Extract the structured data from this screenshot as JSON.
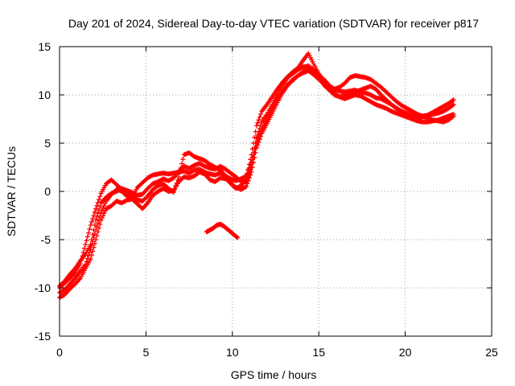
{
  "chart_data": {
    "type": "scatter",
    "title": "Day 201 of 2024, Sidereal Day-to-day VTEC variation (SDTVAR) for receiver p817",
    "xlabel": "GPS time / hours",
    "ylabel": "SDTVAR / TECUs",
    "xlim": [
      0,
      25
    ],
    "ylim": [
      -15,
      15
    ],
    "xticks": [
      0,
      5,
      10,
      15,
      20,
      25
    ],
    "yticks": [
      -15,
      -10,
      -5,
      0,
      5,
      10,
      15
    ],
    "xtick_labels": [
      "0",
      "5",
      "10",
      "15",
      "20",
      "25"
    ],
    "ytick_labels": [
      "-15",
      "-10",
      "-5",
      "0",
      "5",
      "10",
      "15"
    ],
    "grid": true,
    "marker": "+",
    "color": "#ff0000",
    "series": [
      {
        "name": "track_a",
        "x": [
          0.0,
          0.3,
          0.6,
          0.9,
          1.2,
          1.5,
          1.8,
          2.1,
          2.4,
          2.7,
          3.0,
          3.3,
          3.6,
          3.9,
          4.2,
          4.5,
          4.8,
          5.1,
          5.4,
          5.7,
          6.0,
          6.3,
          6.6,
          6.9,
          7.2,
          7.5,
          7.8,
          8.1,
          8.4,
          8.7,
          9.0,
          9.3,
          9.6,
          9.9,
          10.2,
          10.5,
          10.8,
          11.1,
          11.4,
          11.7,
          12.0,
          12.3,
          12.6,
          12.9,
          13.2,
          13.5,
          13.8,
          14.1,
          14.4,
          14.7,
          15.0,
          15.3,
          15.6,
          15.9,
          16.2,
          16.5,
          16.8,
          17.1,
          17.4,
          17.7,
          18.0,
          18.3,
          18.6,
          18.9,
          19.2,
          19.5,
          19.8,
          20.1,
          20.4,
          20.7,
          21.0,
          21.3,
          21.6,
          21.9,
          22.2,
          22.5,
          22.8
        ],
        "y": [
          -10.5,
          -10.2,
          -9.6,
          -9.0,
          -8.3,
          -7.6,
          -6.0,
          -4.0,
          -2.2,
          -1.0,
          -0.3,
          0.2,
          0.0,
          -0.5,
          -0.6,
          0.4,
          0.9,
          1.4,
          1.7,
          1.8,
          1.9,
          1.8,
          1.9,
          2.0,
          2.1,
          1.9,
          2.2,
          2.3,
          2.0,
          1.8,
          1.7,
          1.9,
          1.6,
          1.3,
          1.1,
          1.3,
          1.6,
          3.0,
          5.5,
          7.2,
          8.0,
          9.0,
          10.1,
          11.0,
          11.8,
          12.2,
          12.6,
          12.9,
          13.0,
          12.6,
          12.0,
          11.6,
          11.0,
          10.6,
          10.4,
          10.3,
          10.4,
          10.5,
          10.3,
          10.2,
          10.0,
          9.7,
          9.6,
          9.3,
          9.0,
          8.6,
          8.3,
          8.1,
          8.0,
          7.9,
          7.8,
          7.9,
          8.0,
          8.1,
          8.3,
          8.6,
          9.0
        ]
      },
      {
        "name": "track_b",
        "x": [
          0.0,
          0.3,
          0.6,
          0.9,
          1.2,
          1.5,
          1.8,
          2.1,
          2.4,
          2.7,
          3.0,
          3.3,
          3.6,
          3.9,
          4.2,
          4.5,
          4.8,
          5.1,
          5.4,
          5.7,
          6.0,
          6.3,
          6.6,
          6.9,
          7.2,
          7.5,
          7.8,
          8.1,
          8.4,
          8.7,
          9.0,
          9.3,
          9.6,
          9.9,
          10.2,
          10.5,
          10.8,
          11.1,
          11.4,
          11.7,
          12.0,
          12.3,
          12.6,
          12.9,
          13.2,
          13.5,
          13.8,
          14.1,
          14.4,
          14.7,
          15.0,
          15.3,
          15.6,
          15.9,
          16.2,
          16.5,
          16.8,
          17.1,
          17.4,
          17.7,
          18.0,
          18.3,
          18.6,
          18.9,
          19.2,
          19.5,
          19.8,
          20.1,
          20.4,
          20.7,
          21.0,
          21.3,
          21.6,
          21.9,
          22.2,
          22.5,
          22.8
        ],
        "y": [
          -10.0,
          -9.5,
          -9.0,
          -8.4,
          -7.5,
          -5.5,
          -3.5,
          -1.8,
          -0.2,
          0.8,
          1.2,
          0.7,
          0.2,
          0.0,
          -0.4,
          -0.9,
          -1.0,
          -0.5,
          0.2,
          0.6,
          0.8,
          0.3,
          -0.1,
          1.5,
          3.8,
          4.0,
          3.6,
          3.4,
          3.2,
          2.8,
          2.5,
          2.2,
          1.6,
          0.8,
          0.3,
          0.6,
          1.3,
          3.8,
          6.8,
          8.3,
          9.0,
          9.8,
          10.6,
          11.3,
          11.9,
          12.4,
          12.8,
          13.6,
          14.3,
          13.2,
          12.2,
          11.4,
          10.8,
          10.2,
          9.8,
          9.6,
          9.8,
          10.0,
          9.9,
          9.6,
          9.3,
          9.0,
          8.8,
          8.6,
          8.3,
          8.1,
          7.9,
          7.7,
          7.5,
          7.3,
          7.2,
          7.2,
          7.3,
          7.4,
          7.6,
          7.8,
          8.0
        ]
      },
      {
        "name": "track_c",
        "x": [
          0.0,
          0.3,
          0.6,
          0.9,
          1.2,
          1.5,
          1.8,
          2.1,
          2.4,
          2.7,
          3.0,
          3.3,
          3.6,
          3.9,
          4.2,
          4.5,
          4.8,
          5.1,
          5.4,
          5.7,
          6.0,
          6.3,
          6.6,
          6.9,
          7.2,
          7.5,
          7.8,
          8.1,
          8.4,
          8.7,
          9.0,
          9.3,
          9.6,
          9.9,
          10.2,
          10.5,
          10.8,
          11.1,
          11.4,
          11.7,
          12.0,
          12.3,
          12.6,
          12.9,
          13.2,
          13.5,
          13.8,
          14.1,
          14.4,
          14.7,
          15.0,
          15.3,
          15.6,
          15.9,
          16.2,
          16.5,
          16.8,
          17.1,
          17.4,
          17.7,
          18.0,
          18.3,
          18.6,
          18.9,
          19.2,
          19.5,
          19.8,
          20.1,
          20.4,
          20.7,
          21.0,
          21.3,
          21.6,
          21.9,
          22.2,
          22.5,
          22.8
        ],
        "y": [
          -11.0,
          -10.7,
          -10.1,
          -9.6,
          -9.0,
          -8.0,
          -7.0,
          -5.0,
          -3.0,
          -1.8,
          -1.5,
          -1.0,
          -1.2,
          -0.9,
          -0.8,
          -1.3,
          -1.8,
          -1.2,
          -0.4,
          0.0,
          0.3,
          0.0,
          0.1,
          1.0,
          1.5,
          1.4,
          1.6,
          2.0,
          1.8,
          1.2,
          1.0,
          1.4,
          1.3,
          0.9,
          0.4,
          0.2,
          0.5,
          2.0,
          4.5,
          6.0,
          7.0,
          8.1,
          9.2,
          10.2,
          11.0,
          11.5,
          12.0,
          12.3,
          12.5,
          12.1,
          11.6,
          11.2,
          10.8,
          10.6,
          10.8,
          11.2,
          11.8,
          12.0,
          11.9,
          11.8,
          11.6,
          11.2,
          10.8,
          10.3,
          9.8,
          9.3,
          8.9,
          8.6,
          8.3,
          8.0,
          7.8,
          7.6,
          7.4,
          7.3,
          7.2,
          7.4,
          7.8
        ]
      },
      {
        "name": "track_d",
        "x": [
          0.0,
          0.3,
          0.6,
          0.9,
          1.2,
          1.5,
          1.8,
          2.1,
          2.4,
          2.7,
          3.0,
          3.3,
          3.6,
          3.9,
          4.2,
          4.5,
          4.8,
          5.1,
          5.4,
          5.7,
          6.0,
          6.3,
          6.6,
          6.9,
          7.2,
          7.5,
          7.8,
          8.1,
          8.4,
          8.7,
          9.0,
          9.3,
          9.6,
          9.9,
          10.2,
          10.5,
          10.8,
          11.1,
          11.4,
          11.7,
          12.0,
          12.3,
          12.6,
          12.9,
          13.2,
          13.5,
          13.8,
          14.1,
          14.4,
          14.7,
          15.0,
          15.3,
          15.6,
          15.9,
          16.2,
          16.5,
          16.8,
          17.1,
          17.4,
          17.7,
          18.0,
          18.3,
          18.6,
          18.9,
          19.2,
          19.5,
          19.8,
          20.1,
          20.4,
          20.7,
          21.0,
          21.3,
          21.6,
          21.9,
          22.2,
          22.5,
          22.8
        ],
        "y": [
          -9.8,
          -9.3,
          -8.6,
          -8.0,
          -7.2,
          -6.5,
          -5.5,
          -3.0,
          -1.2,
          -0.6,
          -0.2,
          0.0,
          0.3,
          0.1,
          -0.1,
          -0.4,
          -0.3,
          0.3,
          0.8,
          1.0,
          1.3,
          1.1,
          1.4,
          2.1,
          2.6,
          2.4,
          2.7,
          2.9,
          2.6,
          2.4,
          2.3,
          2.6,
          2.3,
          1.9,
          1.5,
          1.0,
          1.0,
          2.5,
          5.0,
          6.5,
          7.5,
          8.6,
          9.6,
          10.4,
          11.1,
          11.6,
          12.0,
          12.4,
          12.8,
          12.4,
          11.8,
          11.0,
          10.5,
          10.0,
          9.8,
          9.9,
          10.1,
          10.3,
          10.5,
          10.7,
          10.9,
          10.6,
          10.0,
          9.5,
          9.0,
          8.6,
          8.2,
          7.9,
          7.7,
          7.6,
          7.7,
          7.9,
          8.2,
          8.5,
          8.8,
          9.1,
          9.5
        ]
      },
      {
        "name": "track_e",
        "x": [
          8.5,
          8.7,
          8.9,
          9.1,
          9.3,
          9.5,
          9.7,
          9.9,
          10.1,
          10.3
        ],
        "y": [
          -4.2,
          -4.0,
          -3.8,
          -3.5,
          -3.4,
          -3.6,
          -3.9,
          -4.2,
          -4.5,
          -4.8
        ]
      }
    ]
  }
}
